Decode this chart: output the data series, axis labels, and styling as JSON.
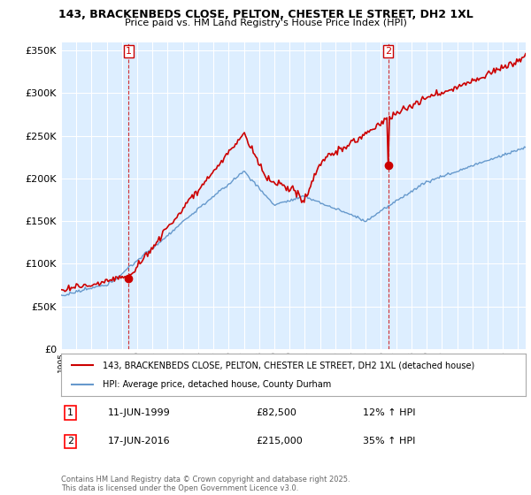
{
  "title1": "143, BRACKENBEDS CLOSE, PELTON, CHESTER LE STREET, DH2 1XL",
  "title2": "Price paid vs. HM Land Registry's House Price Index (HPI)",
  "ylim": [
    0,
    360000
  ],
  "yticks": [
    0,
    50000,
    100000,
    150000,
    200000,
    250000,
    300000,
    350000
  ],
  "sale1_date": "11-JUN-1999",
  "sale1_price": 82500,
  "sale1_pct": "12%",
  "sale2_date": "17-JUN-2016",
  "sale2_price": 215000,
  "sale2_pct": "35%",
  "legend_line1": "143, BRACKENBEDS CLOSE, PELTON, CHESTER LE STREET, DH2 1XL (detached house)",
  "legend_line2": "HPI: Average price, detached house, County Durham",
  "footer": "Contains HM Land Registry data © Crown copyright and database right 2025.\nThis data is licensed under the Open Government Licence v3.0.",
  "line_color_red": "#cc0000",
  "line_color_blue": "#6699cc",
  "vline_color": "#cc0000",
  "bg_color": "#ffffff",
  "chart_bg_color": "#ddeeff",
  "grid_color": "#ffffff"
}
